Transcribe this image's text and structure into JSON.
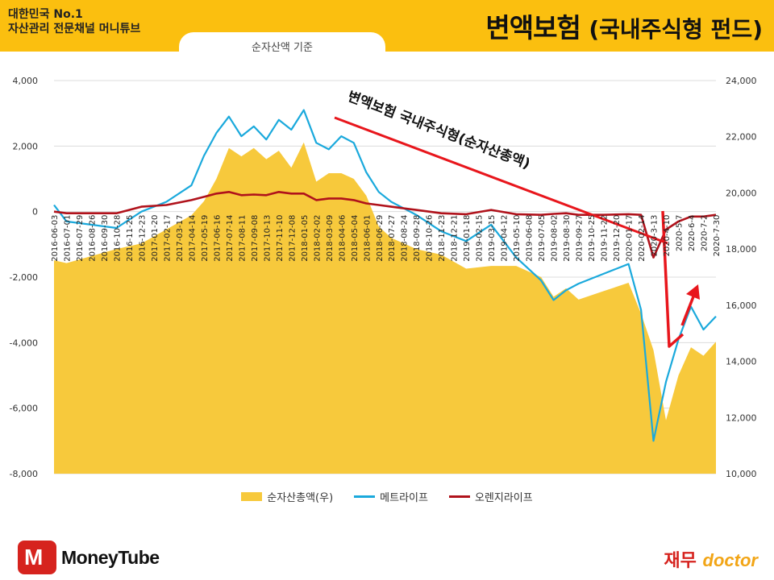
{
  "header": {
    "brand_line1": "대한민국 No.1",
    "brand_line2": "자산관리 전문채널 머니튜브",
    "basis_tab": "순자산액 기준",
    "title_main": "변액보험",
    "title_sub": "(국내주식형 펀드)"
  },
  "colors": {
    "topbar": "#fbbf0f",
    "area": "#f7c93c",
    "metlife": "#1aa9dc",
    "orange": "#b0121b",
    "arrow": "#e8161c"
  },
  "chart_data": {
    "type": "line",
    "secondary_type": "area",
    "annotation": "변액보험 국내주식형(순자산총액)",
    "y_left": {
      "min": -8000,
      "max": 4000,
      "step": 2000,
      "ticks": [
        "4,000",
        "2,000",
        "0",
        "-2,000",
        "-4,000",
        "-6,000",
        "-8,000"
      ]
    },
    "y_right": {
      "min": 10000,
      "max": 24000,
      "step": 2000,
      "ticks": [
        "24,000",
        "22,000",
        "20,000",
        "18,000",
        "16,000",
        "14,000",
        "12,000",
        "10,000"
      ]
    },
    "grid": "horizontal",
    "legend_position": "bottom",
    "x_labels": [
      "2016-06-03",
      "2016-07-01",
      "2016-07-29",
      "2016-08-26",
      "2016-09-30",
      "2016-10-28",
      "2016-11-25",
      "2016-12-23",
      "2017-01-20",
      "2017-02-17",
      "2017-03-17",
      "2017-04-14",
      "2017-05-19",
      "2017-06-16",
      "2017-07-14",
      "2017-08-11",
      "2017-09-08",
      "2017-10-13",
      "2017-11-10",
      "2017-12-08",
      "2018-01-05",
      "2018-02-02",
      "2018-03-09",
      "2018-04-06",
      "2018-05-04",
      "2018-06-01",
      "2018-06-29",
      "2018-07-27",
      "2018-08-24",
      "2018-09-28",
      "2018-10-26",
      "2018-11-23",
      "2018-12-21",
      "2019-01-18",
      "2019-02-15",
      "2019-03-15",
      "2019-04-12",
      "2019-05-10",
      "2019-06-08",
      "2019-07-05",
      "2019-08-02",
      "2019-08-30",
      "2019-09-27",
      "2019-10-25",
      "2019-11-22",
      "2019-12-20",
      "2020-01-17",
      "2020-02-14",
      "2020-3-13",
      "2020-4-10",
      "2020-5-7",
      "2020-6-4",
      "2020-7-2",
      "2020-7-30"
    ],
    "series": [
      {
        "name": "순자산총액(우)",
        "axis": "right",
        "type": "area",
        "x": [
          "2016-06-03",
          "2016-07-01",
          "2016-10-28",
          "2016-12-23",
          "2017-02-17",
          "2017-04-14",
          "2017-05-19",
          "2017-06-16",
          "2017-07-14",
          "2017-08-11",
          "2017-09-08",
          "2017-10-13",
          "2017-11-10",
          "2017-12-08",
          "2018-01-05",
          "2018-02-02",
          "2018-03-09",
          "2018-04-06",
          "2018-05-04",
          "2018-06-01",
          "2018-06-29",
          "2018-07-27",
          "2018-09-28",
          "2018-11-23",
          "2019-01-18",
          "2019-03-15",
          "2019-05-10",
          "2019-07-05",
          "2019-08-02",
          "2019-08-30",
          "2019-09-27",
          "2019-11-22",
          "2020-01-17",
          "2020-02-14",
          "2020-3-13",
          "2020-4-10",
          "2020-5-7",
          "2020-6-4",
          "2020-7-2",
          "2020-7-30"
        ],
        "values": [
          17600,
          17500,
          18000,
          18200,
          18700,
          19200,
          19700,
          20500,
          21600,
          21300,
          21600,
          21200,
          21500,
          20900,
          21800,
          20400,
          20700,
          20700,
          20500,
          19900,
          18800,
          18400,
          18000,
          17800,
          17300,
          17400,
          17400,
          17000,
          16300,
          16600,
          16200,
          16500,
          16800,
          15700,
          14400,
          11900,
          13500,
          14500,
          14200,
          14700
        ]
      },
      {
        "name": "메트라이프",
        "axis": "left",
        "type": "line",
        "x": [
          "2016-06-03",
          "2016-07-01",
          "2016-10-28",
          "2016-12-23",
          "2017-02-17",
          "2017-04-14",
          "2017-05-19",
          "2017-06-16",
          "2017-07-14",
          "2017-08-11",
          "2017-09-08",
          "2017-10-13",
          "2017-11-10",
          "2017-12-08",
          "2018-01-05",
          "2018-02-02",
          "2018-03-09",
          "2018-04-06",
          "2018-05-04",
          "2018-06-01",
          "2018-06-29",
          "2018-07-27",
          "2018-09-28",
          "2018-11-23",
          "2019-01-18",
          "2019-03-15",
          "2019-05-10",
          "2019-07-05",
          "2019-08-02",
          "2019-08-30",
          "2019-09-27",
          "2019-11-22",
          "2020-01-17",
          "2020-02-14",
          "2020-3-13",
          "2020-4-10",
          "2020-5-7",
          "2020-6-4",
          "2020-7-2",
          "2020-7-30"
        ],
        "values": [
          200,
          -300,
          -500,
          0,
          300,
          800,
          1700,
          2400,
          2900,
          2300,
          2600,
          2200,
          2800,
          2500,
          3100,
          2100,
          1900,
          2300,
          2100,
          1200,
          600,
          300,
          -100,
          -600,
          -900,
          -400,
          -1400,
          -2100,
          -2700,
          -2400,
          -2200,
          -1900,
          -1600,
          -3000,
          -7000,
          -5200,
          -3900,
          -2900,
          -3600,
          -3200
        ]
      },
      {
        "name": "오렌지라이프",
        "axis": "left",
        "type": "line",
        "x": [
          "2016-06-03",
          "2016-07-01",
          "2016-10-28",
          "2016-12-23",
          "2017-02-17",
          "2017-04-14",
          "2017-05-19",
          "2017-06-16",
          "2017-07-14",
          "2017-08-11",
          "2017-09-08",
          "2017-10-13",
          "2017-11-10",
          "2017-12-08",
          "2018-01-05",
          "2018-02-02",
          "2018-03-09",
          "2018-04-06",
          "2018-05-04",
          "2018-06-01",
          "2018-06-29",
          "2018-07-27",
          "2018-09-28",
          "2018-11-23",
          "2019-01-18",
          "2019-03-15",
          "2019-05-10",
          "2019-07-05",
          "2019-08-02",
          "2019-08-30",
          "2019-09-27",
          "2019-11-22",
          "2020-01-17",
          "2020-02-14",
          "2020-3-13",
          "2020-4-10",
          "2020-5-7",
          "2020-6-4",
          "2020-7-2",
          "2020-7-30"
        ],
        "values": [
          0,
          -50,
          -50,
          150,
          200,
          350,
          450,
          550,
          600,
          500,
          520,
          500,
          600,
          550,
          550,
          350,
          400,
          400,
          350,
          250,
          200,
          150,
          50,
          -50,
          -80,
          50,
          -80,
          -100,
          -70,
          -50,
          -100,
          -100,
          -80,
          -100,
          -1400,
          -550,
          -300,
          -150,
          -150,
          -100
        ]
      }
    ]
  }
}
